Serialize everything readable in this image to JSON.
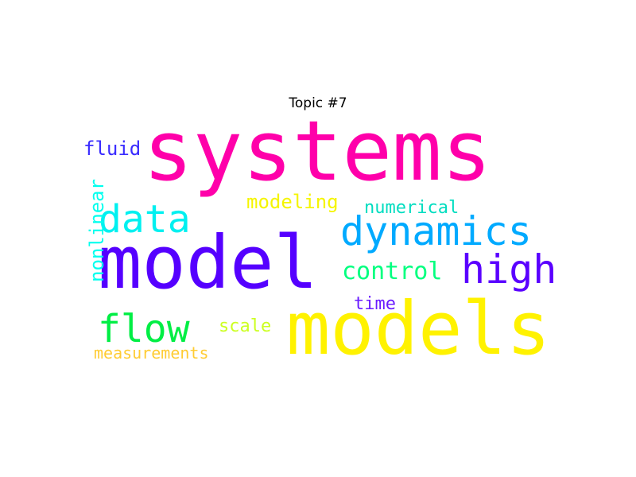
{
  "title": "Topic #7",
  "words": {
    "systems": {
      "text": "systems",
      "color": "#ff00aa"
    },
    "model": {
      "text": "model",
      "color": "#5500ff"
    },
    "models": {
      "text": "models",
      "color": "#fff200"
    },
    "dynamics": {
      "text": "dynamics",
      "color": "#00aaff"
    },
    "high": {
      "text": "high",
      "color": "#5a00ff"
    },
    "data": {
      "text": "data",
      "color": "#00f0f0"
    },
    "flow": {
      "text": "flow",
      "color": "#00ee44"
    },
    "control": {
      "text": "control",
      "color": "#00ff7f"
    },
    "fluid": {
      "text": "fluid",
      "color": "#3a2cff"
    },
    "modeling": {
      "text": "modeling",
      "color": "#f5f500"
    },
    "numerical": {
      "text": "numerical",
      "color": "#00ddc0"
    },
    "time": {
      "text": "time",
      "color": "#6a1cff"
    },
    "scale": {
      "text": "scale",
      "color": "#ccff22"
    },
    "measurements": {
      "text": "measurements",
      "color": "#ffcc33"
    },
    "nonlinear": {
      "text": "nonlinear",
      "color": "#00ffee"
    }
  }
}
